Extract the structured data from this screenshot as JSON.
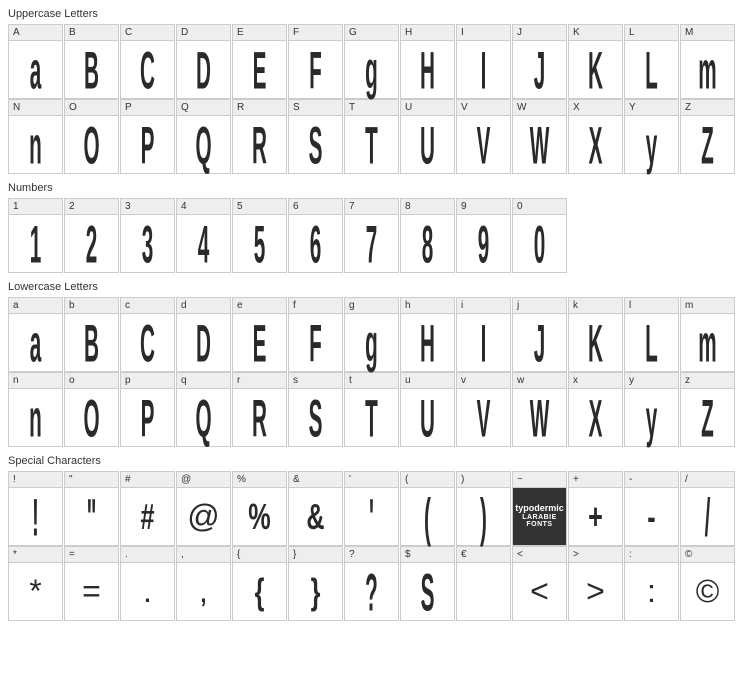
{
  "sections": [
    {
      "title": "Uppercase Letters",
      "rows": [
        [
          {
            "label": "A",
            "glyph": "a",
            "style": "condensed"
          },
          {
            "label": "B",
            "glyph": "B",
            "style": "condensed"
          },
          {
            "label": "C",
            "glyph": "C",
            "style": "condensed"
          },
          {
            "label": "D",
            "glyph": "D",
            "style": "condensed"
          },
          {
            "label": "E",
            "glyph": "E",
            "style": "condensed"
          },
          {
            "label": "F",
            "glyph": "F",
            "style": "condensed"
          },
          {
            "label": "G",
            "glyph": "g",
            "style": "condensed"
          },
          {
            "label": "H",
            "glyph": "H",
            "style": "condensed"
          },
          {
            "label": "I",
            "glyph": "I",
            "style": "condensed"
          },
          {
            "label": "J",
            "glyph": "J",
            "style": "condensed"
          },
          {
            "label": "K",
            "glyph": "K",
            "style": "condensed"
          },
          {
            "label": "L",
            "glyph": "L",
            "style": "condensed"
          },
          {
            "label": "M",
            "glyph": "m",
            "style": "condensed"
          }
        ],
        [
          {
            "label": "N",
            "glyph": "n",
            "style": "condensed"
          },
          {
            "label": "O",
            "glyph": "O",
            "style": "condensed"
          },
          {
            "label": "P",
            "glyph": "P",
            "style": "condensed"
          },
          {
            "label": "Q",
            "glyph": "Q",
            "style": "condensed"
          },
          {
            "label": "R",
            "glyph": "R",
            "style": "condensed"
          },
          {
            "label": "S",
            "glyph": "S",
            "style": "condensed"
          },
          {
            "label": "T",
            "glyph": "T",
            "style": "condensed"
          },
          {
            "label": "U",
            "glyph": "U",
            "style": "condensed"
          },
          {
            "label": "V",
            "glyph": "V",
            "style": "condensed"
          },
          {
            "label": "W",
            "glyph": "W",
            "style": "condensed"
          },
          {
            "label": "X",
            "glyph": "X",
            "style": "condensed"
          },
          {
            "label": "Y",
            "glyph": "y",
            "style": "condensed"
          },
          {
            "label": "Z",
            "glyph": "Z",
            "style": "condensed"
          }
        ]
      ]
    },
    {
      "title": "Numbers",
      "rows": [
        [
          {
            "label": "1",
            "glyph": "1",
            "style": "condensed"
          },
          {
            "label": "2",
            "glyph": "2",
            "style": "condensed"
          },
          {
            "label": "3",
            "glyph": "3",
            "style": "condensed"
          },
          {
            "label": "4",
            "glyph": "4",
            "style": "condensed"
          },
          {
            "label": "5",
            "glyph": "5",
            "style": "condensed"
          },
          {
            "label": "6",
            "glyph": "6",
            "style": "condensed"
          },
          {
            "label": "7",
            "glyph": "7",
            "style": "condensed"
          },
          {
            "label": "8",
            "glyph": "8",
            "style": "condensed"
          },
          {
            "label": "9",
            "glyph": "9",
            "style": "condensed"
          },
          {
            "label": "0",
            "glyph": "0",
            "style": "condensed"
          }
        ]
      ]
    },
    {
      "title": "Lowercase Letters",
      "rows": [
        [
          {
            "label": "a",
            "glyph": "a",
            "style": "condensed"
          },
          {
            "label": "b",
            "glyph": "B",
            "style": "condensed"
          },
          {
            "label": "c",
            "glyph": "C",
            "style": "condensed"
          },
          {
            "label": "d",
            "glyph": "D",
            "style": "condensed"
          },
          {
            "label": "e",
            "glyph": "E",
            "style": "condensed"
          },
          {
            "label": "f",
            "glyph": "F",
            "style": "condensed"
          },
          {
            "label": "g",
            "glyph": "g",
            "style": "condensed"
          },
          {
            "label": "h",
            "glyph": "H",
            "style": "condensed"
          },
          {
            "label": "i",
            "glyph": "I",
            "style": "condensed"
          },
          {
            "label": "j",
            "glyph": "J",
            "style": "condensed"
          },
          {
            "label": "k",
            "glyph": "K",
            "style": "condensed"
          },
          {
            "label": "l",
            "glyph": "L",
            "style": "condensed"
          },
          {
            "label": "m",
            "glyph": "m",
            "style": "condensed"
          }
        ],
        [
          {
            "label": "n",
            "glyph": "n",
            "style": "condensed"
          },
          {
            "label": "o",
            "glyph": "O",
            "style": "condensed"
          },
          {
            "label": "p",
            "glyph": "P",
            "style": "condensed"
          },
          {
            "label": "q",
            "glyph": "Q",
            "style": "condensed"
          },
          {
            "label": "r",
            "glyph": "R",
            "style": "condensed"
          },
          {
            "label": "s",
            "glyph": "S",
            "style": "condensed"
          },
          {
            "label": "t",
            "glyph": "T",
            "style": "condensed"
          },
          {
            "label": "u",
            "glyph": "U",
            "style": "condensed"
          },
          {
            "label": "v",
            "glyph": "V",
            "style": "condensed"
          },
          {
            "label": "w",
            "glyph": "W",
            "style": "condensed"
          },
          {
            "label": "x",
            "glyph": "X",
            "style": "condensed"
          },
          {
            "label": "y",
            "glyph": "y",
            "style": "condensed"
          },
          {
            "label": "z",
            "glyph": "Z",
            "style": "condensed"
          }
        ]
      ]
    },
    {
      "title": "Special Characters",
      "rows": [
        [
          {
            "label": "!",
            "glyph": "!",
            "style": "condensed"
          },
          {
            "label": "\"",
            "glyph": "\"",
            "style": "condensed"
          },
          {
            "label": "#",
            "glyph": "#",
            "style": "medium"
          },
          {
            "label": "@",
            "glyph": "@",
            "style": "normal"
          },
          {
            "label": "%",
            "glyph": "%",
            "style": "medium"
          },
          {
            "label": "&",
            "glyph": "&",
            "style": "medium"
          },
          {
            "label": "'",
            "glyph": "'",
            "style": "condensed"
          },
          {
            "label": "(",
            "glyph": "(",
            "style": "condensed"
          },
          {
            "label": ")",
            "glyph": ")",
            "style": "condensed"
          },
          {
            "label": "~",
            "glyph": "LOGO",
            "style": "logo"
          },
          {
            "label": "+",
            "glyph": "+",
            "style": "medium"
          },
          {
            "label": "-",
            "glyph": "-",
            "style": "medium"
          },
          {
            "label": "/",
            "glyph": "/",
            "style": "condensed"
          }
        ],
        [
          {
            "label": "*",
            "glyph": "*",
            "style": "normal"
          },
          {
            "label": "=",
            "glyph": "=",
            "style": "normal"
          },
          {
            "label": ".",
            "glyph": ".",
            "style": "normal"
          },
          {
            "label": ",",
            "glyph": ",",
            "style": "normal"
          },
          {
            "label": "{",
            "glyph": "{",
            "style": "medium"
          },
          {
            "label": "}",
            "glyph": "}",
            "style": "medium"
          },
          {
            "label": "?",
            "glyph": "?",
            "style": "condensed"
          },
          {
            "label": "$",
            "glyph": "S",
            "style": "condensed"
          },
          {
            "label": "€",
            "glyph": "",
            "style": "normal"
          },
          {
            "label": "<",
            "glyph": "<",
            "style": "normal"
          },
          {
            "label": ">",
            "glyph": ">",
            "style": "normal"
          },
          {
            "label": ":",
            "glyph": ":",
            "style": "normal"
          },
          {
            "label": "©",
            "glyph": "©",
            "style": "normal"
          }
        ]
      ]
    }
  ],
  "logo": {
    "line1": "typodermic",
    "line2": "LARABIE FONTS"
  },
  "colors": {
    "background": "#ffffff",
    "cell_border": "#cccccc",
    "label_bg": "#eeeeee",
    "glyph_color": "#2a2a2a",
    "title_color": "#333333"
  }
}
